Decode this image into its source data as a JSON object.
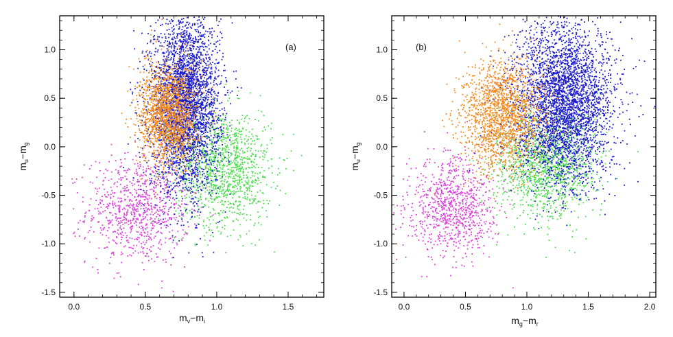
{
  "colors": {
    "axis": "#000000",
    "blue": "#1a1acc",
    "orange": "#f08a1e",
    "green": "#4ddc4d",
    "magenta": "#d940d9"
  },
  "chart_data": [
    {
      "type": "scatter",
      "panel_label": "(a)",
      "xlabel": "m_v-m_i",
      "xlabel_main": "m",
      "xlabel_sub1": "v",
      "xlabel_mid": "−m",
      "xlabel_sub2": "i",
      "ylabel_main": "m",
      "ylabel_sub1": "u",
      "ylabel_mid": "−m",
      "ylabel_sub2": "g",
      "xlim": [
        -0.1,
        1.75
      ],
      "ylim": [
        -1.55,
        1.35
      ],
      "xticks": [
        0.0,
        0.5,
        1.0,
        1.5
      ],
      "xtick_labels": [
        "0.0",
        "0.5",
        "1.0",
        "1.5"
      ],
      "yticks": [
        -1.5,
        -1.0,
        -0.5,
        0.0,
        0.5,
        1.0
      ],
      "ytick_labels": [
        "-1.5",
        "-1.0",
        "-0.5",
        "0.0",
        "0.5",
        "1.0"
      ],
      "series": [
        {
          "name": "magenta",
          "color": "#d940d9",
          "n": 900,
          "mean": [
            0.45,
            -0.65
          ],
          "sd": [
            0.18,
            0.28
          ]
        },
        {
          "name": "green",
          "color": "#4ddc4d",
          "n": 1300,
          "mean": [
            1.05,
            -0.22
          ],
          "sd": [
            0.17,
            0.3
          ]
        },
        {
          "name": "blue",
          "color": "#1a1acc",
          "n": 3400,
          "mean": [
            0.78,
            0.45
          ],
          "sd": [
            0.12,
            0.45
          ]
        },
        {
          "name": "orange",
          "color": "#f08a1e",
          "n": 1700,
          "mean": [
            0.66,
            0.33
          ],
          "sd": [
            0.1,
            0.26
          ]
        }
      ]
    },
    {
      "type": "scatter",
      "panel_label": "(b)",
      "xlabel": "m_g-m_r",
      "xlabel_main": "m",
      "xlabel_sub1": "g",
      "xlabel_mid": "−m",
      "xlabel_sub2": "r",
      "ylabel_main": "m",
      "ylabel_sub1": "u",
      "ylabel_mid": "−m",
      "ylabel_sub2": "g",
      "xlim": [
        -0.1,
        2.05
      ],
      "ylim": [
        -1.55,
        1.35
      ],
      "xticks": [
        0.0,
        0.5,
        1.0,
        1.5,
        2.0
      ],
      "xtick_labels": [
        "0.0",
        "0.5",
        "1.0",
        "1.5",
        "2.0"
      ],
      "yticks": [
        -1.5,
        -1.0,
        -0.5,
        0.0,
        0.5,
        1.0
      ],
      "ytick_labels": [
        "-1.5",
        "-1.0",
        "-0.5",
        "0.0",
        "0.5",
        "1.0"
      ],
      "series": [
        {
          "name": "magenta",
          "color": "#d940d9",
          "n": 900,
          "mean": [
            0.4,
            -0.62
          ],
          "sd": [
            0.18,
            0.25
          ]
        },
        {
          "name": "green",
          "color": "#4ddc4d",
          "n": 1300,
          "mean": [
            1.15,
            -0.18
          ],
          "sd": [
            0.2,
            0.28
          ]
        },
        {
          "name": "blue",
          "color": "#1a1acc",
          "n": 3400,
          "mean": [
            1.3,
            0.45
          ],
          "sd": [
            0.2,
            0.42
          ]
        },
        {
          "name": "orange",
          "color": "#f08a1e",
          "n": 1700,
          "mean": [
            0.8,
            0.33
          ],
          "sd": [
            0.17,
            0.28
          ]
        }
      ]
    }
  ]
}
